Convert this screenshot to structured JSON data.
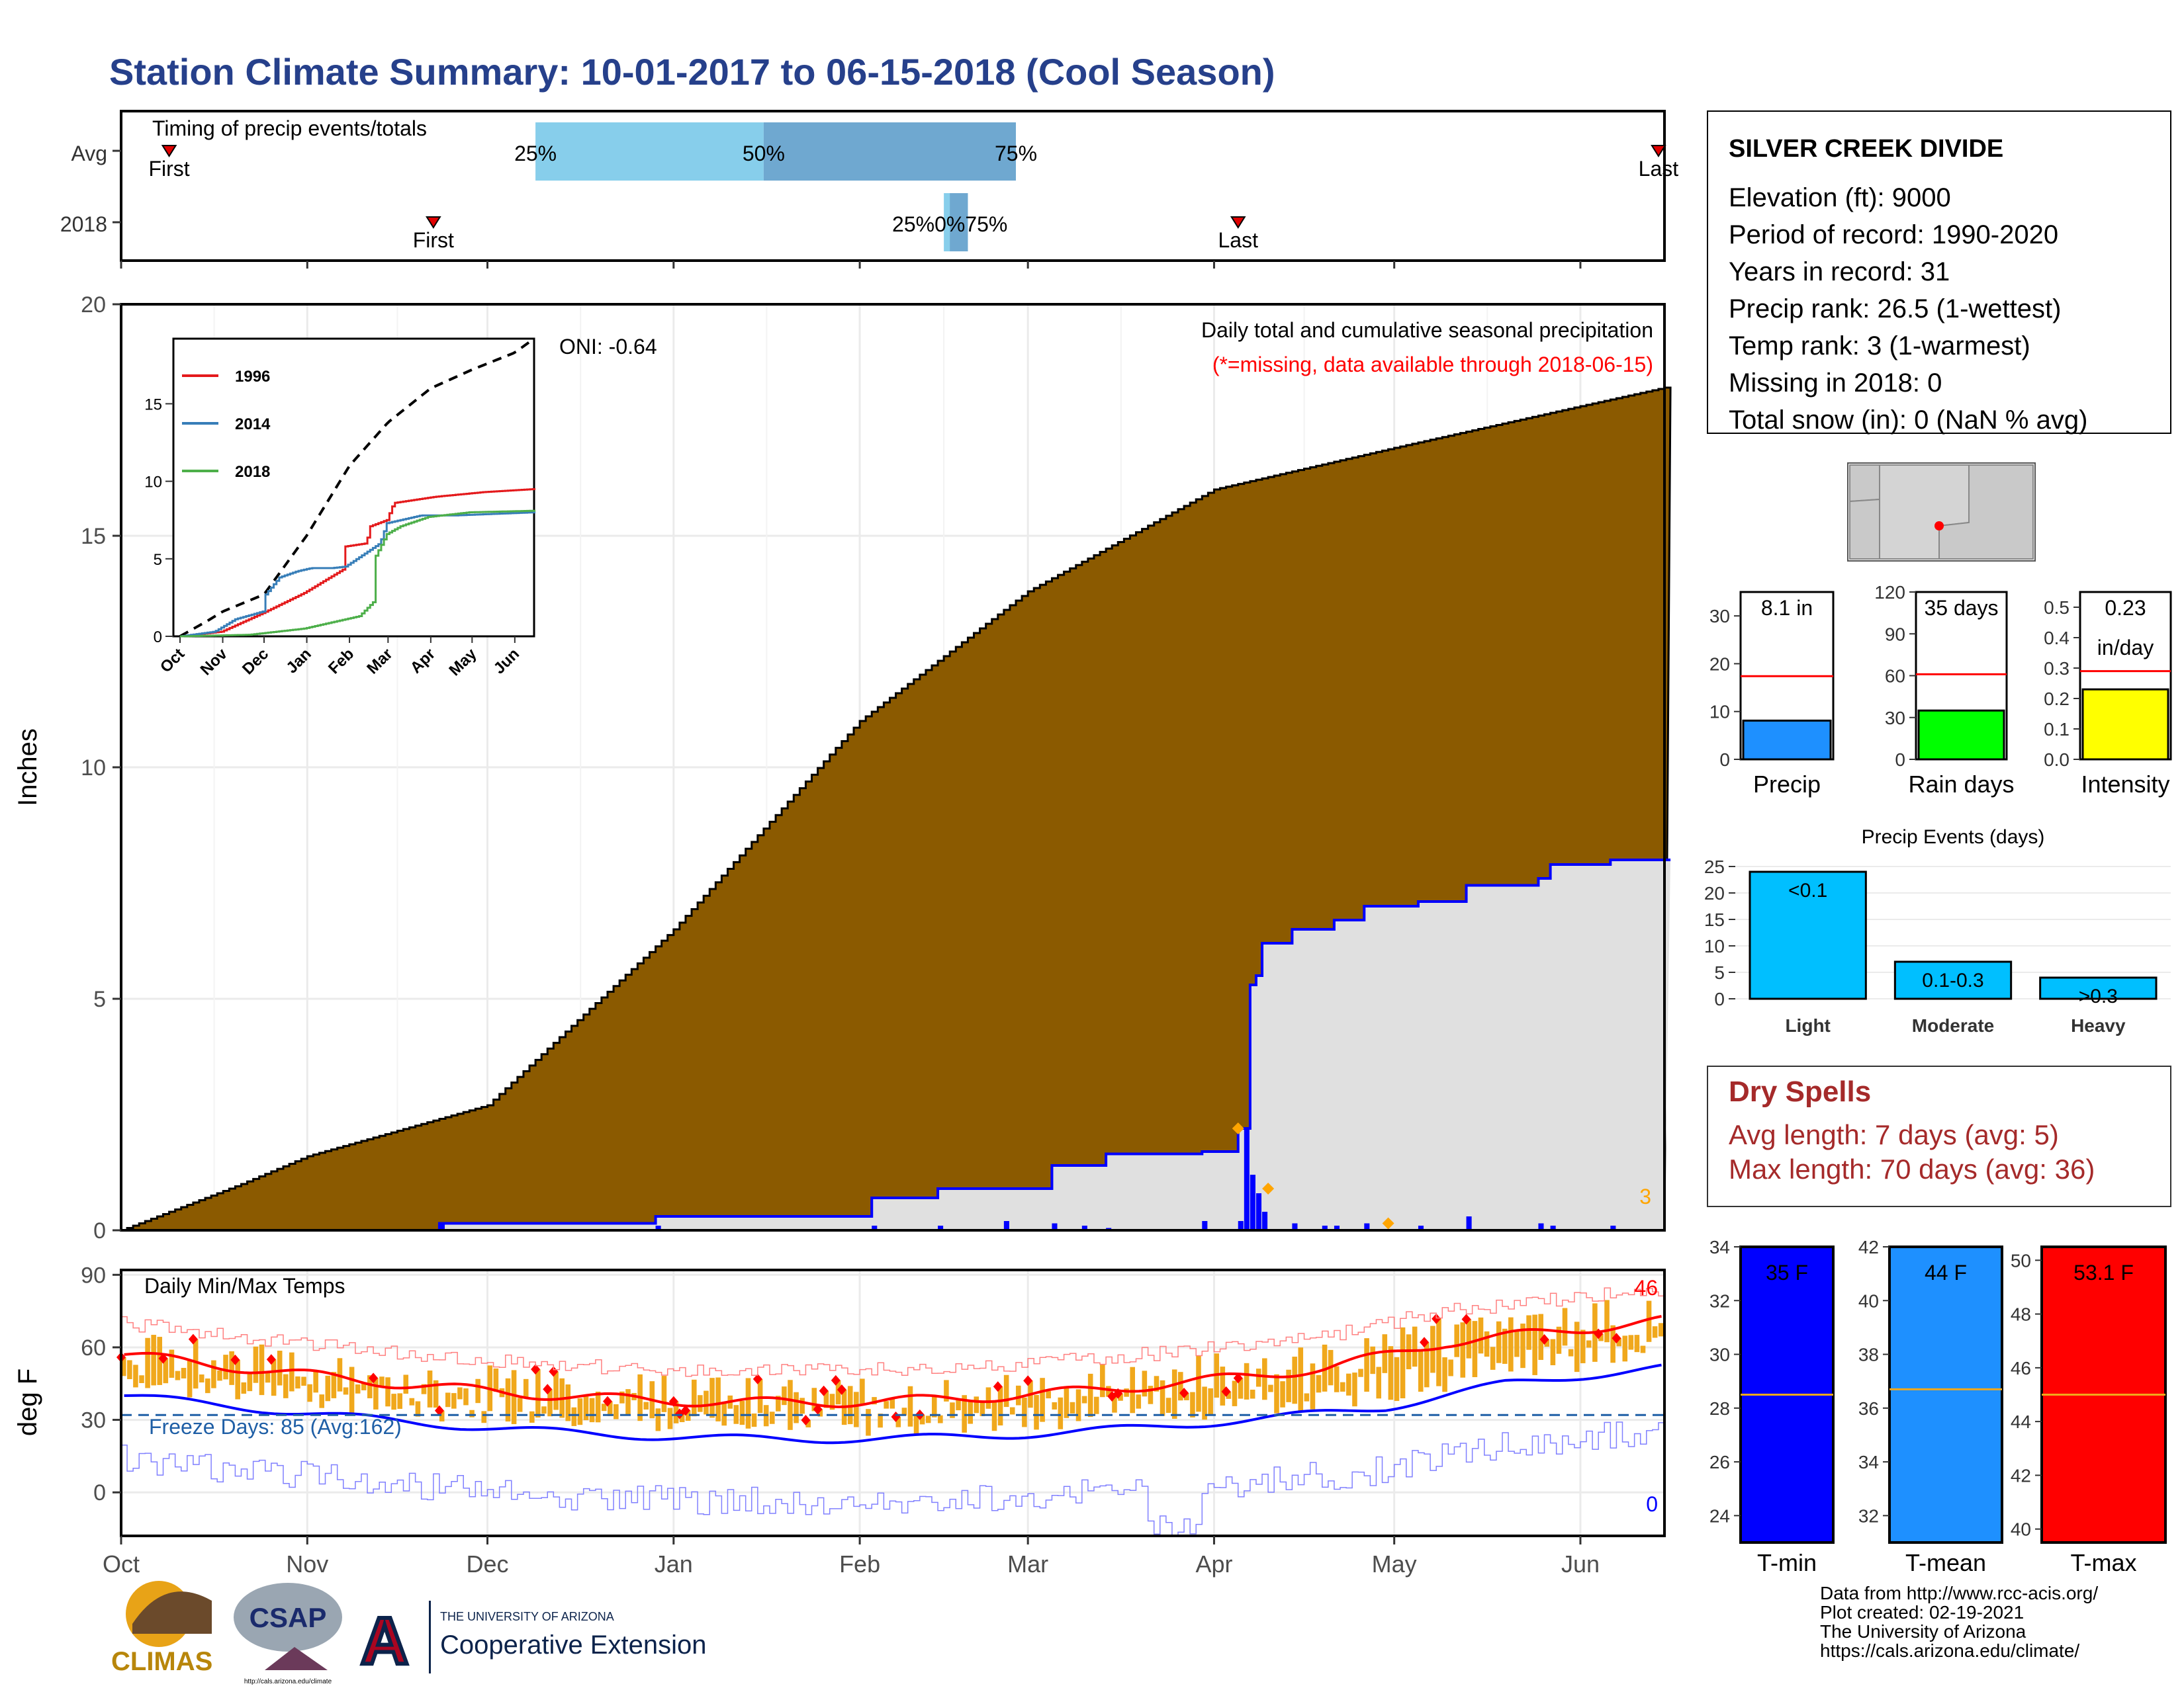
{
  "title": "Station Climate Summary: 10-01-2017 to 06-15-2018 (Cool Season)",
  "timing": {
    "label": "Timing of precip events/totals",
    "rows": [
      "Avg",
      "2018"
    ],
    "first_label": "First",
    "last_label": "Last",
    "pct_labels": [
      "25%",
      "50%",
      "75%"
    ],
    "avg": {
      "first": "2017-10-09",
      "last": "2018-06-14",
      "p25": "2017-12-09",
      "p50": "2018-01-16",
      "p75": "2018-02-27"
    },
    "y2018": {
      "first": "2017-11-22",
      "last": "2018-04-05",
      "p25": "2018-02-15",
      "p50": "2018-02-16",
      "p75": "2018-02-19",
      "overlap_text": "25%0%75%"
    }
  },
  "months": [
    "Oct",
    "Nov",
    "Dec",
    "Jan",
    "Feb",
    "Mar",
    "Apr",
    "May",
    "Jun"
  ],
  "precip": {
    "ylabel": "Inches",
    "yticks": [
      0,
      5,
      10,
      15,
      20
    ],
    "ylim": [
      0,
      20
    ],
    "caption": "Daily total and cumulative seasonal precipitation",
    "caption_missing": "(*=missing, data available through 2018-06-15)",
    "oni": "ONI: -0.64",
    "corner_value": "3",
    "colors": {
      "cumavg": "#8b5a00",
      "cum2018_fill": "#e0e0e0",
      "line2018": "#0000ff",
      "marker": "#ffa500"
    }
  },
  "inset": {
    "yticks": [
      0,
      5,
      10,
      15
    ],
    "months": [
      "Oct",
      "Nov",
      "Dec",
      "Jan",
      "Feb",
      "Mar",
      "Apr",
      "May",
      "Jun"
    ],
    "legend": [
      {
        "name": "1996",
        "color": "#e41a1c"
      },
      {
        "name": "2014",
        "color": "#377eb8"
      },
      {
        "name": "2018",
        "color": "#4daf4a"
      }
    ]
  },
  "temps": {
    "ylabel": "deg F",
    "label": "Daily Min/Max Temps",
    "yticks": [
      0,
      30,
      60,
      90
    ],
    "freeze_text": "Freeze Days: 85 (Avg:162)",
    "max_corner": "46",
    "min_corner": "0"
  },
  "station": {
    "name": "SILVER CREEK DIVIDE",
    "lines": [
      "Elevation (ft): 9000",
      "Period of record: 1990-2020",
      "Years in record: 31",
      "Precip rank: 26.5 (1-wettest)",
      "Temp rank: 3 (1-warmest)",
      "Missing in 2018: 0",
      "Total snow (in): 0 (NaN % avg)"
    ]
  },
  "mini_bars": [
    {
      "label": "Precip",
      "value_text": "8.1 in",
      "value": 8.1,
      "avg": 17.4,
      "max": 35,
      "ticks": [
        0,
        10,
        20,
        30
      ],
      "color": "#1e90ff"
    },
    {
      "label": "Rain days",
      "value_text": "35 days",
      "value": 35,
      "avg": 61,
      "max": 120,
      "ticks": [
        0,
        30,
        60,
        90,
        120
      ],
      "color": "#00ff00"
    },
    {
      "label": "Intensity",
      "value_text": "0.23",
      "value_text2": "in/day",
      "value": 0.23,
      "avg": 0.29,
      "max": 0.55,
      "ticks": [
        "0.0",
        "0.1",
        "0.2",
        "0.3",
        "0.4",
        "0.5"
      ],
      "color": "#ffff00"
    }
  ],
  "events": {
    "title": "Precip Events (days)",
    "yticks": [
      0,
      5,
      10,
      15,
      20,
      25
    ],
    "bars": [
      {
        "category": "Light",
        "label": "<0.1",
        "value": 24
      },
      {
        "category": "Moderate",
        "label": "0.1-0.3",
        "value": 7
      },
      {
        "category": "Heavy",
        "label": ">0.3",
        "value": 4
      }
    ],
    "color": "#00bfff"
  },
  "dry_spells": {
    "title": "Dry Spells",
    "lines": [
      "Avg length: 7 days (avg: 5)",
      "Max length: 70 days (avg: 36)"
    ]
  },
  "temp_bars": [
    {
      "label": "T-min",
      "value_text": "35 F",
      "ticks": [
        24,
        26,
        28,
        30,
        32,
        34
      ],
      "min": 23,
      "max": 34,
      "avg": 28.5,
      "color": "#0000ff"
    },
    {
      "label": "T-mean",
      "value_text": "44 F",
      "ticks": [
        32,
        34,
        36,
        38,
        40,
        42
      ],
      "min": 31,
      "max": 42,
      "avg": 36.7,
      "color": "#1e90ff"
    },
    {
      "label": "T-max",
      "value_text": "53.1 F",
      "ticks": [
        40,
        42,
        44,
        46,
        48,
        50
      ],
      "min": 39.5,
      "max": 50.5,
      "avg": 45,
      "color": "#ff0000"
    }
  ],
  "credits": [
    "Data from http://www.rcc-acis.org/",
    "Plot created: 02-19-2021",
    "The University of Arizona",
    "https://cals.arizona.edu/climate/"
  ],
  "logos": {
    "climas": "CLIMAS",
    "csap": "CSAP",
    "csap_url": "http://cals.arizona.edu/climate",
    "ua_small": "THE UNIVERSITY OF ARIZONA",
    "ua_big": "Cooperative Extension"
  }
}
